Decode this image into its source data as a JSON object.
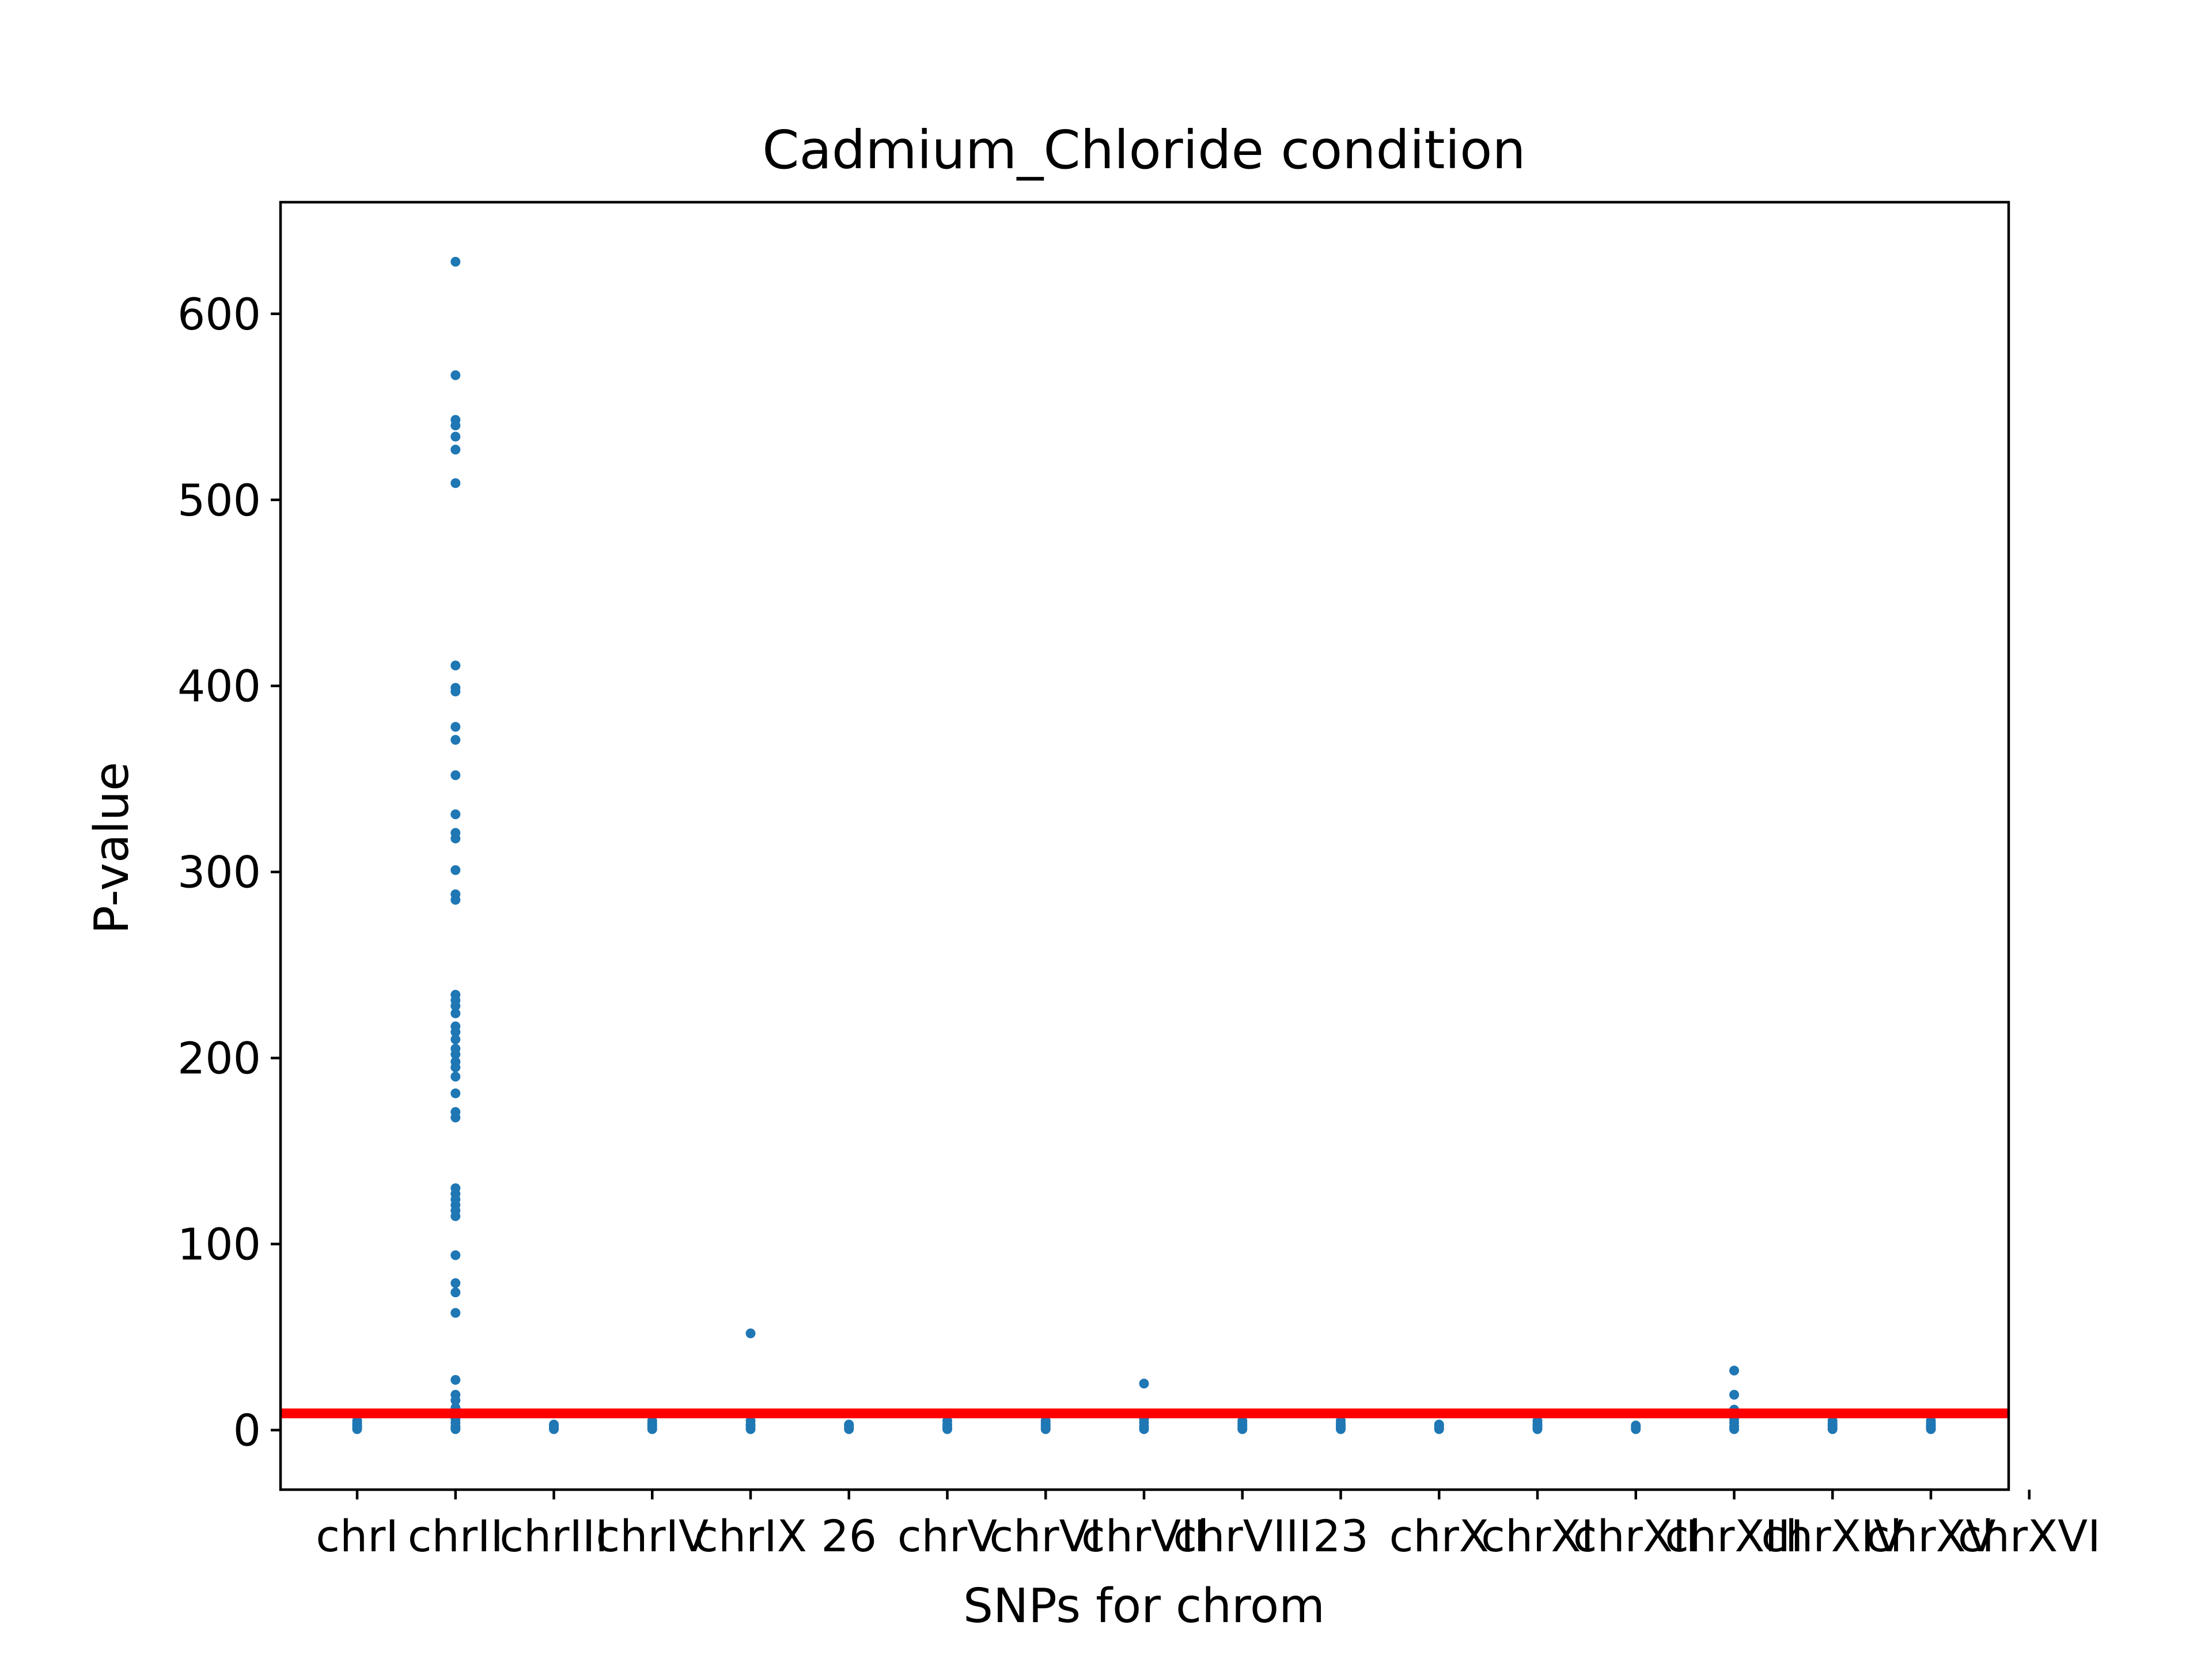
{
  "chart_data": {
    "type": "scatter",
    "title": "Cadmium_Chloride condition",
    "xlabel": "SNPs for chrom",
    "ylabel": "P-value",
    "ylim": [
      -32,
      660
    ],
    "yticks": [
      0,
      100,
      200,
      300,
      400,
      500,
      600
    ],
    "grid": false,
    "categories": [
      "chrI",
      "chrII",
      "chrIII",
      "chrIV",
      "chrIX",
      "26",
      "chrV",
      "chrVI",
      "chrVII",
      "chrVIII",
      "23",
      "chrX",
      "chrXI",
      "chrXII",
      "chrXIII",
      "chrXIV",
      "chrXV",
      "chrXVI"
    ],
    "threshold": {
      "value": 9,
      "color": "#ff0000"
    },
    "point_color": "#1f77b4",
    "series": [
      {
        "category": "chrI",
        "values": [
          0.5,
          1.5,
          2.5,
          3.5,
          5
        ]
      },
      {
        "category": "chrII",
        "values": [
          628,
          567,
          543,
          540,
          534,
          527,
          509,
          411,
          399,
          397,
          378,
          371,
          352,
          331,
          321,
          318,
          301,
          288,
          285,
          234,
          231,
          228,
          224,
          217,
          214,
          210,
          205,
          202,
          198,
          195,
          190,
          181,
          171,
          168,
          130,
          127,
          124,
          121,
          118,
          115,
          94,
          79,
          74,
          63,
          27,
          19,
          16,
          12,
          8,
          6,
          4,
          2,
          1,
          0.5
        ]
      },
      {
        "category": "chrIII",
        "values": [
          0.5,
          1.5,
          2.5,
          3
        ]
      },
      {
        "category": "chrIV",
        "values": [
          0.5,
          1.5,
          2.5,
          3.5,
          5
        ]
      },
      {
        "category": "chrIX",
        "values": [
          52,
          5,
          3,
          2,
          0.5
        ]
      },
      {
        "category": "26",
        "values": [
          0.5,
          1.5,
          2.5,
          3
        ]
      },
      {
        "category": "chrV",
        "values": [
          9,
          5,
          3,
          1.5,
          0.5
        ]
      },
      {
        "category": "chrVI",
        "values": [
          0.5,
          1.5,
          2.5,
          3.5,
          5
        ]
      },
      {
        "category": "chrVII",
        "values": [
          25,
          6,
          4,
          2,
          0.5
        ]
      },
      {
        "category": "chrVIII",
        "values": [
          0.5,
          1.5,
          2.5,
          3.5,
          5
        ]
      },
      {
        "category": "23",
        "values": [
          0.5,
          1.5,
          2.5,
          3.5,
          5
        ]
      },
      {
        "category": "chrX",
        "values": [
          0.5,
          1.5,
          2.5,
          3
        ]
      },
      {
        "category": "chrXI",
        "values": [
          0.5,
          1.5,
          2.5,
          3.5,
          5
        ]
      },
      {
        "category": "chrXII",
        "values": [
          0.5,
          1.5,
          2.5
        ]
      },
      {
        "category": "chrXIII",
        "values": [
          32,
          19,
          11,
          6,
          4,
          2,
          0.5
        ]
      },
      {
        "category": "chrXIV",
        "values": [
          0.5,
          1.5,
          2.5,
          3.5,
          5
        ]
      },
      {
        "category": "chrXV",
        "values": [
          0.5,
          1.5,
          2.5,
          3.5,
          5
        ]
      }
    ]
  }
}
